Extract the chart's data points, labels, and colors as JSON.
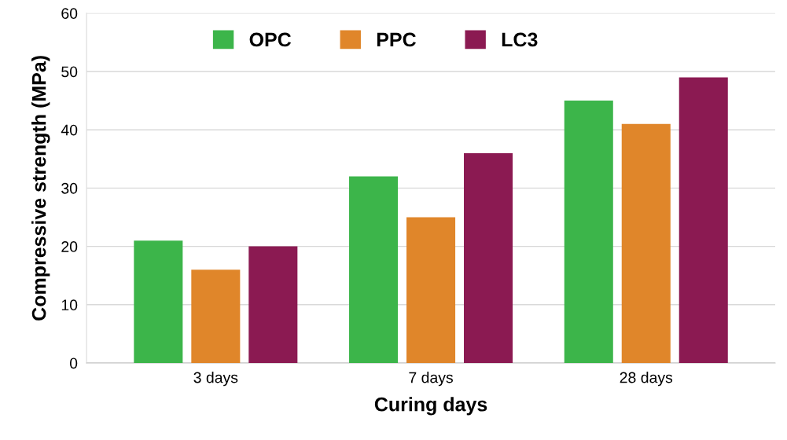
{
  "chart_data": {
    "type": "bar",
    "xlabel": "Curing days",
    "ylabel": "Compressive strength (MPa)",
    "categories": [
      "3 days",
      "7 days",
      "28 days"
    ],
    "series": [
      {
        "name": "OPC",
        "color": "#3cb54a",
        "values": [
          21,
          32,
          45
        ]
      },
      {
        "name": "PPC",
        "color": "#e0862a",
        "values": [
          16,
          25,
          41
        ]
      },
      {
        "name": "LC3",
        "color": "#8b1a52",
        "values": [
          20,
          36,
          49
        ]
      }
    ],
    "ylim": [
      0,
      60
    ],
    "yticks": [
      0,
      10,
      20,
      30,
      40,
      50,
      60
    ],
    "grid": "y",
    "legend": "top"
  }
}
